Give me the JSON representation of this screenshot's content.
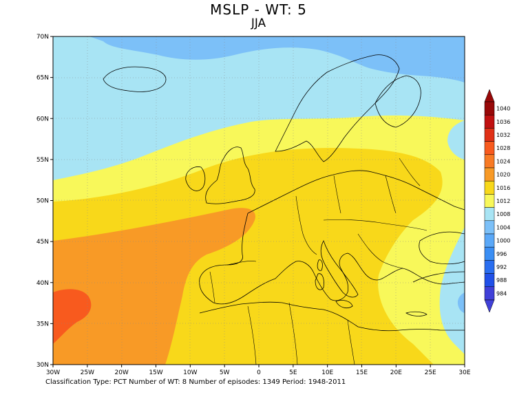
{
  "title": "MSLP - WT: 5",
  "subtitle": "JJA",
  "footer": "Classification Type: PCT Number of WT: 8 Number of episodes: 1349 Period: 1948-2011",
  "lon_ticks": [
    "30W",
    "25W",
    "20W",
    "15W",
    "10W",
    "5W",
    "0",
    "5E",
    "10E",
    "15E",
    "20E",
    "25E",
    "30E"
  ],
  "lat_ticks": [
    "70N",
    "65N",
    "60N",
    "55N",
    "50N",
    "45N",
    "40N",
    "35N",
    "30N"
  ],
  "colorbar": {
    "levels": [
      "984",
      "988",
      "992",
      "996",
      "1000",
      "1004",
      "1008",
      "1012",
      "1016",
      "1020",
      "1024",
      "1028",
      "1032",
      "1036",
      "1040"
    ],
    "colors": [
      "#4040d8",
      "#2050e8",
      "#2a6ef0",
      "#3a8ef4",
      "#5aa8f8",
      "#7cc0f8",
      "#a8e4f4",
      "#f8f85a",
      "#f8d81a",
      "#f89a26",
      "#f87a24",
      "#f85a1e",
      "#e03016",
      "#c01010",
      "#980808"
    ]
  },
  "chart_data": {
    "type": "heatmap",
    "variable": "MSLP",
    "season": "JJA",
    "lon_range": [
      -30,
      30
    ],
    "lat_range": [
      30,
      70
    ],
    "grid": true,
    "contour_interval": 4,
    "colorbar_range": [
      984,
      1040
    ]
  }
}
